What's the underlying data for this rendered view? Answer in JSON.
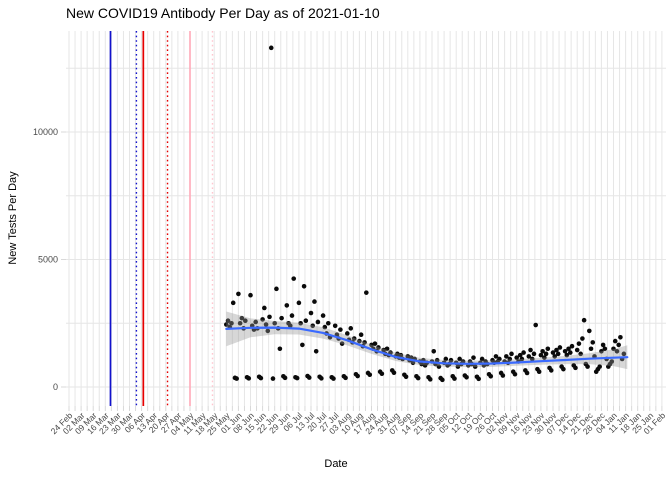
{
  "chart_data": {
    "type": "scatter",
    "title": "New COVID19 Antibody Per Day as of 2021-01-10",
    "xlabel": "Date",
    "ylabel": "New Tests Per Day",
    "grid": true,
    "legend": false,
    "y_ticks": [
      0,
      5000,
      10000
    ],
    "y_minor_ticks": [
      2500,
      7500,
      12500
    ],
    "ylim": [
      -700,
      14000
    ],
    "x_axis": {
      "start_date": "2020-02-24",
      "end_date": "2021-02-01",
      "tick_interval_days": 7,
      "tick_labels": [
        "24 Feb",
        "02 Mar",
        "09 Mar",
        "16 Mar",
        "23 Mar",
        "30 Mar",
        "06 Apr",
        "13 Apr",
        "20 Apr",
        "27 Apr",
        "04 May",
        "11 May",
        "18 May",
        "25 May",
        "01 Jun",
        "08 Jun",
        "15 Jun",
        "22 Jun",
        "29 Jun",
        "06 Jul",
        "13 Jul",
        "20 Jul",
        "27 Jul",
        "03 Aug",
        "10 Aug",
        "17 Aug",
        "24 Aug",
        "31 Aug",
        "07 Sep",
        "14 Sep",
        "21 Sep",
        "28 Sep",
        "05 Oct",
        "12 Oct",
        "19 Oct",
        "26 Oct",
        "02 Nov",
        "09 Nov",
        "16 Nov",
        "23 Nov",
        "30 Nov",
        "07 Dec",
        "14 Dec",
        "21 Dec",
        "28 Dec",
        "04 Jan",
        "11 Jan",
        "18 Jan",
        "25 Jan",
        "01 Feb"
      ]
    },
    "colors": {
      "point": "#0a0a0a",
      "smooth_line": "#3a6aff",
      "ci_band": "rgba(150,150,150,0.38)",
      "grid": "#e6e6e6",
      "tick_text": "#4a4a4a",
      "vline_blue": "#1212cc",
      "vline_red": "#e60000",
      "vline_pink": "#ffaebc",
      "vline_pink_light": "#ffc6cf"
    },
    "vlines": [
      {
        "date": "2020-03-19",
        "color": "#1212cc",
        "style": "solid"
      },
      {
        "date": "2020-04-03",
        "color": "#1212cc",
        "style": "dotted"
      },
      {
        "date": "2020-04-07",
        "color": "#e60000",
        "style": "solid"
      },
      {
        "date": "2020-04-21",
        "color": "#e60000",
        "style": "dotted"
      },
      {
        "date": "2020-05-04",
        "color": "#ffaebc",
        "style": "solid"
      },
      {
        "date": "2020-05-17",
        "color": "#ffc6cf",
        "style": "dotted"
      }
    ],
    "smooth": [
      {
        "date": "2020-05-25",
        "value": 2280,
        "lo": 1600,
        "hi": 2960
      },
      {
        "date": "2020-06-08",
        "value": 2320,
        "lo": 1950,
        "hi": 2690
      },
      {
        "date": "2020-06-22",
        "value": 2330,
        "lo": 2070,
        "hi": 2590
      },
      {
        "date": "2020-07-06",
        "value": 2290,
        "lo": 2060,
        "hi": 2520
      },
      {
        "date": "2020-07-20",
        "value": 2120,
        "lo": 1900,
        "hi": 2340
      },
      {
        "date": "2020-08-03",
        "value": 1830,
        "lo": 1630,
        "hi": 2030
      },
      {
        "date": "2020-08-17",
        "value": 1480,
        "lo": 1300,
        "hi": 1660
      },
      {
        "date": "2020-08-31",
        "value": 1180,
        "lo": 1020,
        "hi": 1340
      },
      {
        "date": "2020-09-14",
        "value": 1000,
        "lo": 860,
        "hi": 1140
      },
      {
        "date": "2020-09-28",
        "value": 930,
        "lo": 800,
        "hi": 1060
      },
      {
        "date": "2020-10-12",
        "value": 910,
        "lo": 780,
        "hi": 1040
      },
      {
        "date": "2020-10-26",
        "value": 920,
        "lo": 790,
        "hi": 1050
      },
      {
        "date": "2020-11-09",
        "value": 960,
        "lo": 830,
        "hi": 1090
      },
      {
        "date": "2020-11-23",
        "value": 1010,
        "lo": 870,
        "hi": 1150
      },
      {
        "date": "2020-12-07",
        "value": 1060,
        "lo": 900,
        "hi": 1220
      },
      {
        "date": "2020-12-21",
        "value": 1110,
        "lo": 900,
        "hi": 1320
      },
      {
        "date": "2021-01-04",
        "value": 1150,
        "lo": 820,
        "hi": 1480
      },
      {
        "date": "2021-01-12",
        "value": 1170,
        "lo": 700,
        "hi": 1640
      }
    ],
    "points": [
      [
        "2020-05-25",
        2450
      ],
      [
        "2020-05-26",
        2600
      ],
      [
        "2020-05-27",
        2350
      ],
      [
        "2020-05-28",
        2500
      ],
      [
        "2020-05-29",
        3300
      ],
      [
        "2020-05-30",
        360
      ],
      [
        "2020-05-31",
        330
      ],
      [
        "2020-06-01",
        3650
      ],
      [
        "2020-06-02",
        2500
      ],
      [
        "2020-06-03",
        2700
      ],
      [
        "2020-06-04",
        2300
      ],
      [
        "2020-06-05",
        2600
      ],
      [
        "2020-06-06",
        380
      ],
      [
        "2020-06-07",
        340
      ],
      [
        "2020-06-08",
        3600
      ],
      [
        "2020-06-09",
        2400
      ],
      [
        "2020-06-10",
        2250
      ],
      [
        "2020-06-11",
        2550
      ],
      [
        "2020-06-12",
        2300
      ],
      [
        "2020-06-13",
        400
      ],
      [
        "2020-06-14",
        350
      ],
      [
        "2020-06-15",
        2650
      ],
      [
        "2020-06-16",
        3100
      ],
      [
        "2020-06-17",
        2450
      ],
      [
        "2020-06-18",
        2200
      ],
      [
        "2020-06-19",
        2750
      ],
      [
        "2020-06-20",
        13300
      ],
      [
        "2020-06-21",
        330
      ],
      [
        "2020-06-22",
        2500
      ],
      [
        "2020-06-23",
        3850
      ],
      [
        "2020-06-24",
        2300
      ],
      [
        "2020-06-25",
        1500
      ],
      [
        "2020-06-26",
        2700
      ],
      [
        "2020-06-27",
        420
      ],
      [
        "2020-06-28",
        360
      ],
      [
        "2020-06-29",
        3200
      ],
      [
        "2020-06-30",
        2500
      ],
      [
        "2020-07-01",
        2400
      ],
      [
        "2020-07-02",
        2800
      ],
      [
        "2020-07-03",
        4250
      ],
      [
        "2020-07-04",
        380
      ],
      [
        "2020-07-05",
        350
      ],
      [
        "2020-07-06",
        3300
      ],
      [
        "2020-07-07",
        2500
      ],
      [
        "2020-07-08",
        1650
      ],
      [
        "2020-07-09",
        3950
      ],
      [
        "2020-07-10",
        2600
      ],
      [
        "2020-07-11",
        430
      ],
      [
        "2020-07-12",
        370
      ],
      [
        "2020-07-13",
        2900
      ],
      [
        "2020-07-14",
        2400
      ],
      [
        "2020-07-15",
        3350
      ],
      [
        "2020-07-16",
        1400
      ],
      [
        "2020-07-17",
        2550
      ],
      [
        "2020-07-18",
        400
      ],
      [
        "2020-07-19",
        340
      ],
      [
        "2020-07-20",
        2800
      ],
      [
        "2020-07-21",
        2350
      ],
      [
        "2020-07-22",
        2100
      ],
      [
        "2020-07-23",
        2500
      ],
      [
        "2020-07-24",
        1950
      ],
      [
        "2020-07-25",
        380
      ],
      [
        "2020-07-26",
        330
      ],
      [
        "2020-07-27",
        2400
      ],
      [
        "2020-07-28",
        2050
      ],
      [
        "2020-07-29",
        1900
      ],
      [
        "2020-07-30",
        2250
      ],
      [
        "2020-07-31",
        1700
      ],
      [
        "2020-08-01",
        420
      ],
      [
        "2020-08-02",
        360
      ],
      [
        "2020-08-03",
        2100
      ],
      [
        "2020-08-04",
        1850
      ],
      [
        "2020-08-05",
        2300
      ],
      [
        "2020-08-06",
        1750
      ],
      [
        "2020-08-07",
        1900
      ],
      [
        "2020-08-08",
        500
      ],
      [
        "2020-08-09",
        430
      ],
      [
        "2020-08-10",
        1800
      ],
      [
        "2020-08-11",
        2050
      ],
      [
        "2020-08-12",
        1600
      ],
      [
        "2020-08-13",
        1750
      ],
      [
        "2020-08-14",
        3700
      ],
      [
        "2020-08-15",
        550
      ],
      [
        "2020-08-16",
        480
      ],
      [
        "2020-08-17",
        1650
      ],
      [
        "2020-08-18",
        1500
      ],
      [
        "2020-08-19",
        1700
      ],
      [
        "2020-08-20",
        1400
      ],
      [
        "2020-08-21",
        1550
      ],
      [
        "2020-08-22",
        600
      ],
      [
        "2020-08-23",
        520
      ],
      [
        "2020-08-24",
        1450
      ],
      [
        "2020-08-25",
        1300
      ],
      [
        "2020-08-26",
        1500
      ],
      [
        "2020-08-27",
        1250
      ],
      [
        "2020-08-28",
        1350
      ],
      [
        "2020-08-29",
        650
      ],
      [
        "2020-08-30",
        560
      ],
      [
        "2020-08-31",
        1200
      ],
      [
        "2020-09-01",
        1300
      ],
      [
        "2020-09-02",
        1150
      ],
      [
        "2020-09-03",
        1250
      ],
      [
        "2020-09-04",
        1100
      ],
      [
        "2020-09-05",
        480
      ],
      [
        "2020-09-06",
        400
      ],
      [
        "2020-09-07",
        1200
      ],
      [
        "2020-09-08",
        1050
      ],
      [
        "2020-09-09",
        1150
      ],
      [
        "2020-09-10",
        950
      ],
      [
        "2020-09-11",
        1100
      ],
      [
        "2020-09-12",
        420
      ],
      [
        "2020-09-13",
        350
      ],
      [
        "2020-09-14",
        1000
      ],
      [
        "2020-09-15",
        900
      ],
      [
        "2020-09-16",
        1050
      ],
      [
        "2020-09-17",
        850
      ],
      [
        "2020-09-18",
        950
      ],
      [
        "2020-09-19",
        380
      ],
      [
        "2020-09-20",
        300
      ],
      [
        "2020-09-21",
        1000
      ],
      [
        "2020-09-22",
        1400
      ],
      [
        "2020-09-23",
        900
      ],
      [
        "2020-09-24",
        1050
      ],
      [
        "2020-09-25",
        800
      ],
      [
        "2020-09-26",
        350
      ],
      [
        "2020-09-27",
        280
      ],
      [
        "2020-09-28",
        950
      ],
      [
        "2020-09-29",
        1100
      ],
      [
        "2020-09-30",
        850
      ],
      [
        "2020-10-01",
        900
      ],
      [
        "2020-10-02",
        1050
      ],
      [
        "2020-10-03",
        420
      ],
      [
        "2020-10-04",
        330
      ],
      [
        "2020-10-05",
        950
      ],
      [
        "2020-10-06",
        800
      ],
      [
        "2020-10-07",
        1100
      ],
      [
        "2020-10-08",
        900
      ],
      [
        "2020-10-09",
        1000
      ],
      [
        "2020-10-10",
        450
      ],
      [
        "2020-10-11",
        380
      ],
      [
        "2020-10-12",
        850
      ],
      [
        "2020-10-13",
        1000
      ],
      [
        "2020-10-14",
        900
      ],
      [
        "2020-10-15",
        1150
      ],
      [
        "2020-10-16",
        800
      ],
      [
        "2020-10-17",
        400
      ],
      [
        "2020-10-18",
        320
      ],
      [
        "2020-10-19",
        950
      ],
      [
        "2020-10-20",
        1100
      ],
      [
        "2020-10-21",
        850
      ],
      [
        "2020-10-22",
        1000
      ],
      [
        "2020-10-23",
        900
      ],
      [
        "2020-10-24",
        500
      ],
      [
        "2020-10-25",
        420
      ],
      [
        "2020-10-26",
        1050
      ],
      [
        "2020-10-27",
        950
      ],
      [
        "2020-10-28",
        1200
      ],
      [
        "2020-10-29",
        1000
      ],
      [
        "2020-10-30",
        1100
      ],
      [
        "2020-10-31",
        550
      ],
      [
        "2020-11-01",
        450
      ],
      [
        "2020-11-02",
        1000
      ],
      [
        "2020-11-03",
        1200
      ],
      [
        "2020-11-04",
        950
      ],
      [
        "2020-11-05",
        1100
      ],
      [
        "2020-11-06",
        1300
      ],
      [
        "2020-11-07",
        600
      ],
      [
        "2020-11-08",
        500
      ],
      [
        "2020-11-09",
        1150
      ],
      [
        "2020-11-10",
        1000
      ],
      [
        "2020-11-11",
        1250
      ],
      [
        "2020-11-12",
        1100
      ],
      [
        "2020-11-13",
        1350
      ],
      [
        "2020-11-14",
        650
      ],
      [
        "2020-11-15",
        550
      ],
      [
        "2020-11-16",
        1200
      ],
      [
        "2020-11-17",
        1450
      ],
      [
        "2020-11-18",
        1100
      ],
      [
        "2020-11-19",
        1300
      ],
      [
        "2020-11-20",
        2430
      ],
      [
        "2020-11-21",
        700
      ],
      [
        "2020-11-22",
        600
      ],
      [
        "2020-11-23",
        1250
      ],
      [
        "2020-11-24",
        1400
      ],
      [
        "2020-11-25",
        1150
      ],
      [
        "2020-11-26",
        1300
      ],
      [
        "2020-11-27",
        1500
      ],
      [
        "2020-11-28",
        750
      ],
      [
        "2020-11-29",
        650
      ],
      [
        "2020-11-30",
        1350
      ],
      [
        "2020-12-01",
        1200
      ],
      [
        "2020-12-02",
        1450
      ],
      [
        "2020-12-03",
        1300
      ],
      [
        "2020-12-04",
        1550
      ],
      [
        "2020-12-05",
        800
      ],
      [
        "2020-12-06",
        700
      ],
      [
        "2020-12-07",
        1400
      ],
      [
        "2020-12-08",
        1250
      ],
      [
        "2020-12-09",
        1500
      ],
      [
        "2020-12-10",
        1350
      ],
      [
        "2020-12-11",
        1600
      ],
      [
        "2020-12-12",
        850
      ],
      [
        "2020-12-13",
        750
      ],
      [
        "2020-12-14",
        1450
      ],
      [
        "2020-12-15",
        1700
      ],
      [
        "2020-12-16",
        1300
      ],
      [
        "2020-12-17",
        1900
      ],
      [
        "2020-12-18",
        2620
      ],
      [
        "2020-12-19",
        900
      ],
      [
        "2020-12-20",
        800
      ],
      [
        "2020-12-21",
        2200
      ],
      [
        "2020-12-22",
        1500
      ],
      [
        "2020-12-23",
        1750
      ],
      [
        "2020-12-24",
        1200
      ],
      [
        "2020-12-25",
        600
      ],
      [
        "2020-12-26",
        700
      ],
      [
        "2020-12-27",
        800
      ],
      [
        "2020-12-28",
        1400
      ],
      [
        "2020-12-29",
        1650
      ],
      [
        "2020-12-30",
        1500
      ],
      [
        "2020-12-31",
        1100
      ],
      [
        "2021-01-01",
        800
      ],
      [
        "2021-01-02",
        900
      ],
      [
        "2021-01-03",
        1000
      ],
      [
        "2021-01-04",
        1500
      ],
      [
        "2021-01-05",
        1800
      ],
      [
        "2021-01-06",
        1400
      ],
      [
        "2021-01-07",
        1650
      ],
      [
        "2021-01-08",
        1950
      ],
      [
        "2021-01-09",
        1100
      ],
      [
        "2021-01-10",
        1300
      ]
    ]
  }
}
